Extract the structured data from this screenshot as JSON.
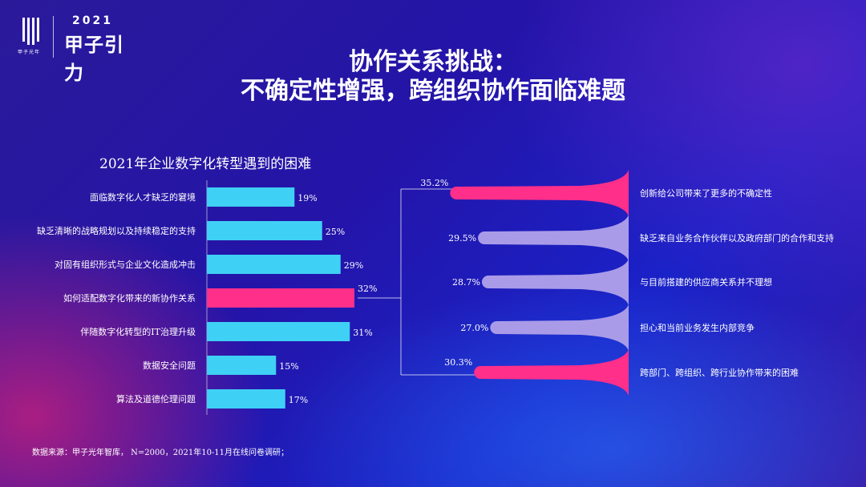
{
  "logo": {
    "year": "2021",
    "name": "甲子引力",
    "caption": "甲子光年"
  },
  "title": {
    "line1": "协作关系挑战：",
    "line2": "不确定性增强，跨组织协作面临难题"
  },
  "colors": {
    "bar_default": "#3fd0f5",
    "bar_highlight": "#ff2f8a",
    "funnel_pink": "#ff2f8a",
    "funnel_lavender": "#a99be8"
  },
  "chart_data": [
    {
      "type": "bar",
      "orientation": "horizontal",
      "title": "2021年企业数字化转型遇到的困难",
      "categories": [
        "面临数字化人才缺乏的窘境",
        "缺乏清晰的战略规划以及持续稳定的支持",
        "对固有组织形式与企业文化造成冲击",
        "如何适配数字化带来的新协作关系",
        "伴随数字化转型的IT治理升级",
        "数据安全问题",
        "算法及道德伦理问题"
      ],
      "values": [
        19,
        25,
        29,
        32,
        31,
        15,
        17
      ],
      "value_labels": [
        "19%",
        "25%",
        "29%",
        "32%",
        "31%",
        "15%",
        "17%"
      ],
      "highlight_index": 3,
      "xlim": [
        0,
        60
      ]
    },
    {
      "type": "bar",
      "orientation": "horizontal",
      "categories": [
        "创新给公司带来了更多的不确定性",
        "缺乏来自业务合作伙伴以及政府部门的合作和支持",
        "与目前搭建的供应商关系并不理想",
        "担心和当前业务发生内部竞争",
        "跨部门、跨组织、跨行业协作带来的困难"
      ],
      "values": [
        35.2,
        29.5,
        28.7,
        27.0,
        30.3
      ],
      "value_labels": [
        "35.2%",
        "29.5%",
        "28.7%",
        "27.0%",
        "30.3%"
      ],
      "highlight_indices": [
        0,
        4
      ]
    }
  ],
  "source": "数据来源：甲子光年智库， N=2000，2021年10-11月在线问卷调研；"
}
